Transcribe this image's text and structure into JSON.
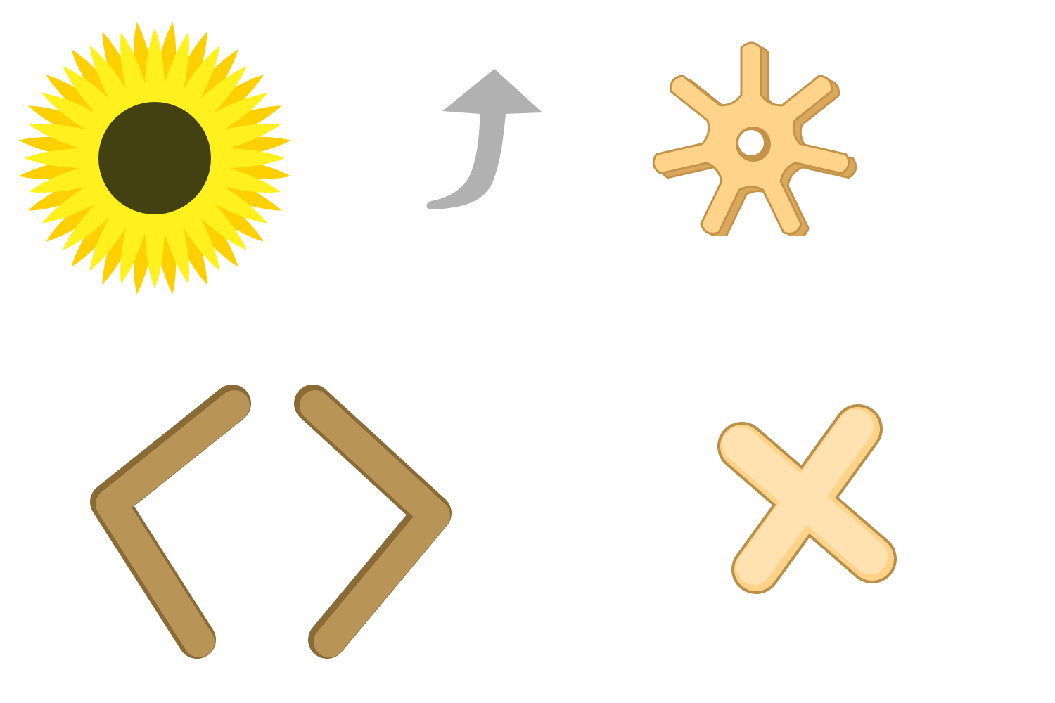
{
  "icons": [
    {
      "name": "sunflower",
      "colors": {
        "petal_light": "#fff01e",
        "petal_dark": "#ffd000",
        "center": "#434112"
      }
    },
    {
      "name": "curved-arrow-up",
      "colors": {
        "fill": "#b1b1b1"
      }
    },
    {
      "name": "gear",
      "colors": {
        "face": "#ffd48a",
        "side": "#d9a85d",
        "outline": "#c5924a"
      }
    },
    {
      "name": "angle-brackets-code",
      "colors": {
        "fill": "#b89556",
        "outline": "#8a6a35"
      }
    },
    {
      "name": "cross-x",
      "colors": {
        "face": "#ffe2b0",
        "inner": "#ffd28a",
        "outline": "#b9904a"
      }
    }
  ]
}
